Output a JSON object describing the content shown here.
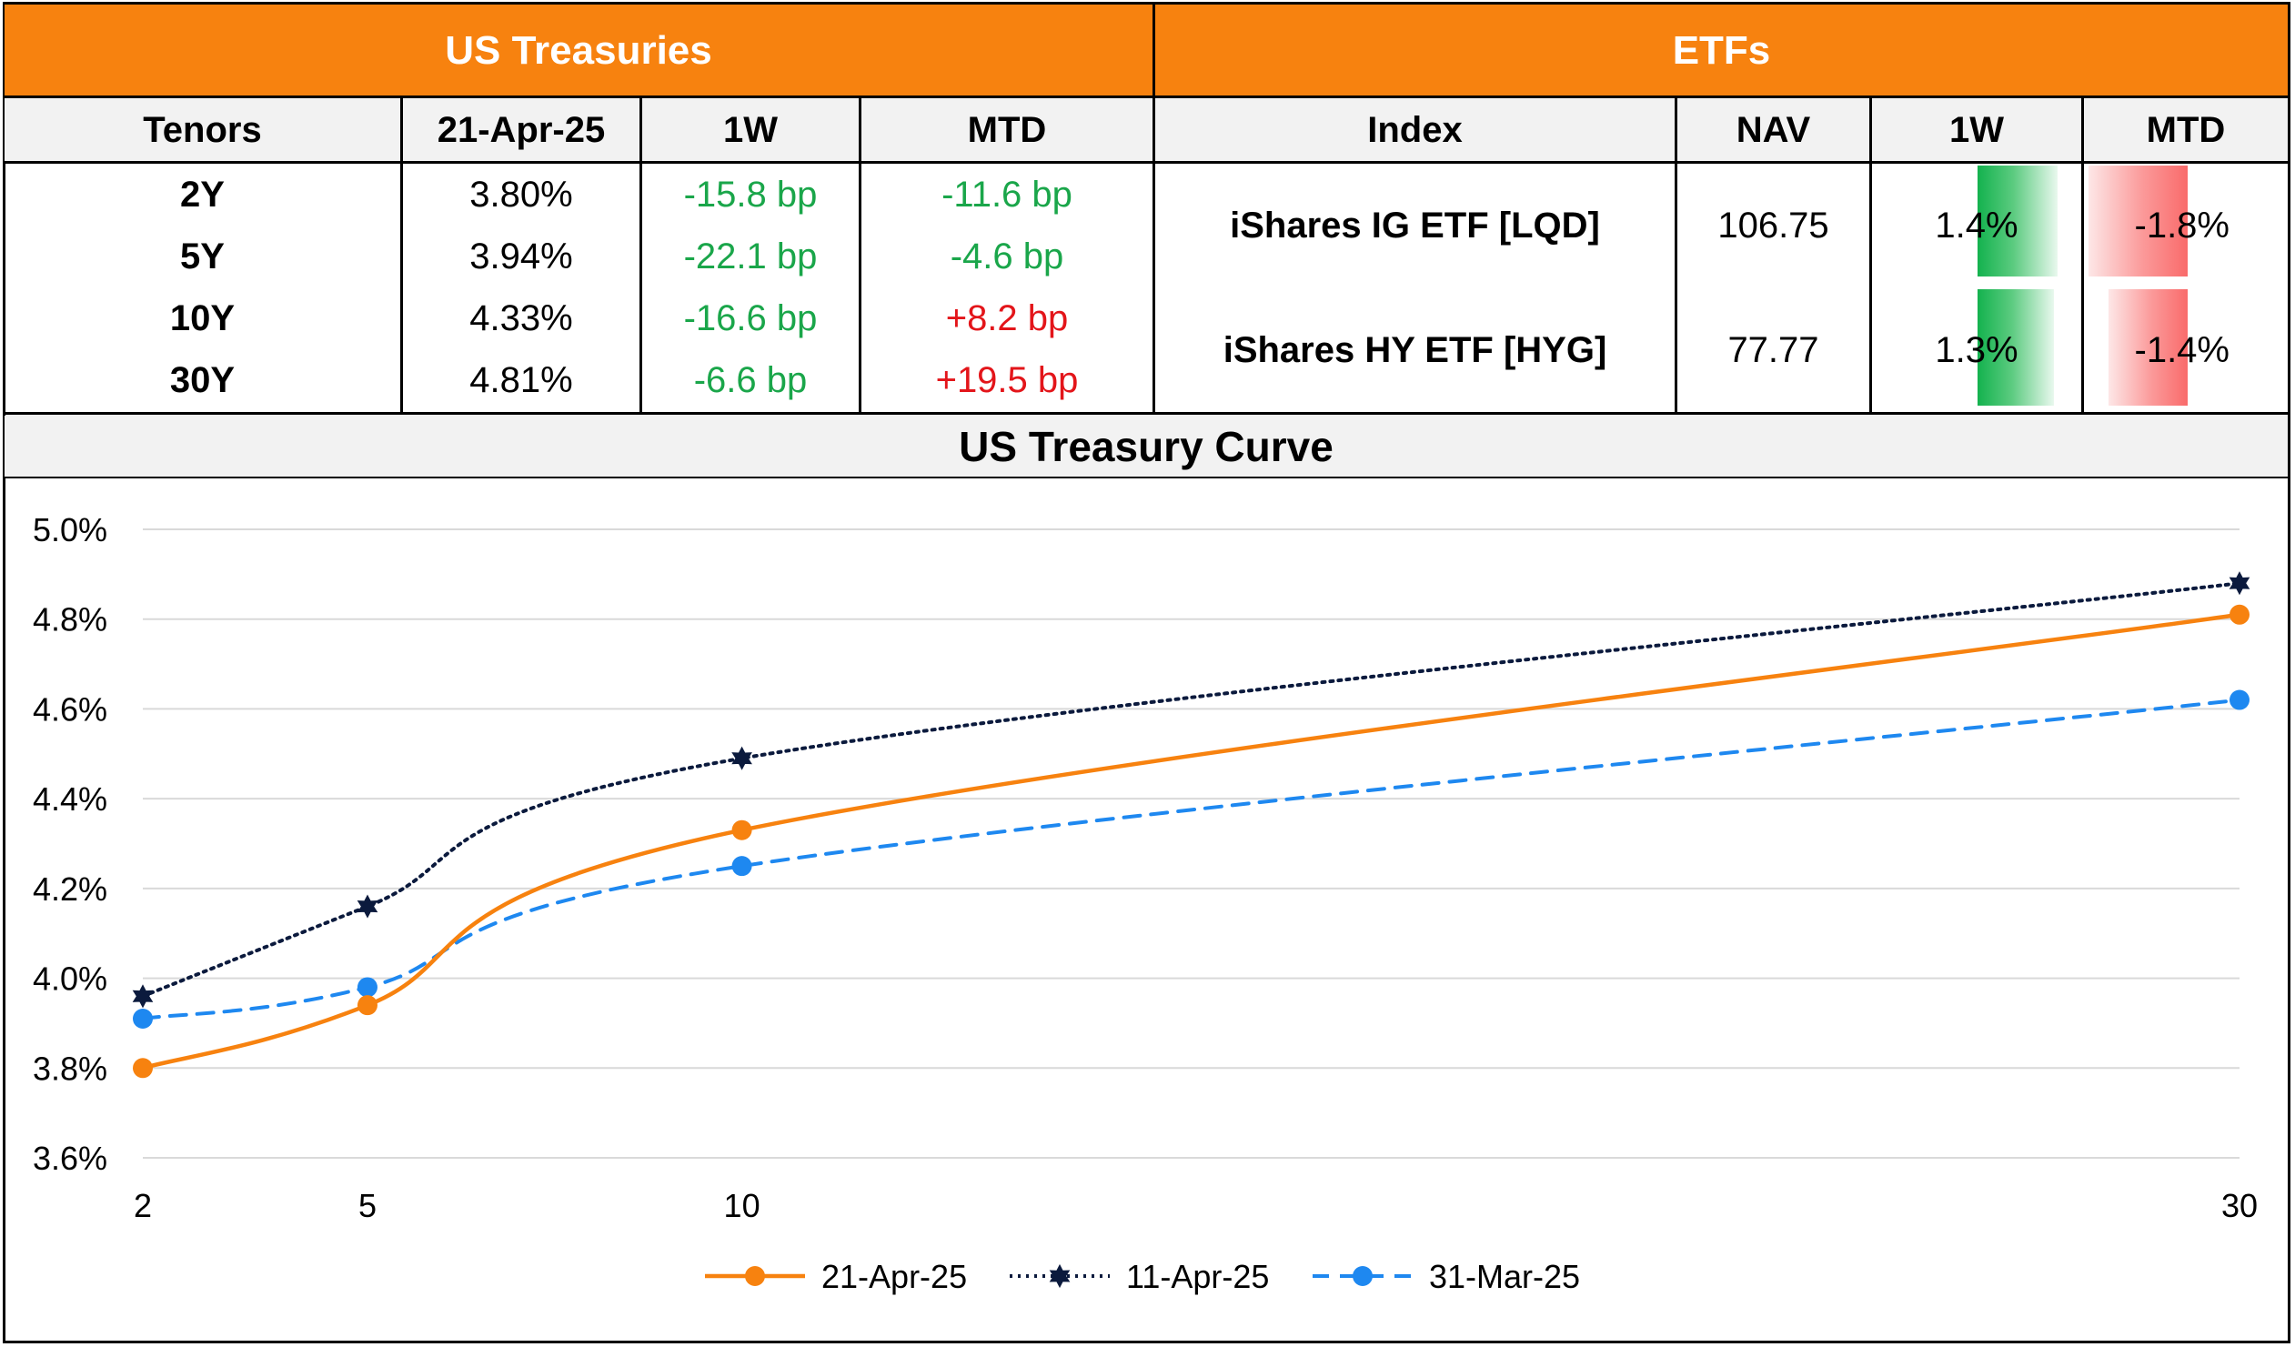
{
  "treasuries": {
    "title": "US Treasuries",
    "headers": [
      "Tenors",
      "21-Apr-25",
      "1W",
      "MTD"
    ],
    "rows": [
      {
        "tenor": "2Y",
        "yield": "3.80%",
        "w1": "-15.8 bp",
        "mtd": "-11.6 bp",
        "w1_dir": "down",
        "mtd_dir": "down"
      },
      {
        "tenor": "5Y",
        "yield": "3.94%",
        "w1": "-22.1 bp",
        "mtd": "-4.6 bp",
        "w1_dir": "down",
        "mtd_dir": "down"
      },
      {
        "tenor": "10Y",
        "yield": "4.33%",
        "w1": "-16.6 bp",
        "mtd": "+8.2 bp",
        "w1_dir": "down",
        "mtd_dir": "up"
      },
      {
        "tenor": "30Y",
        "yield": "4.81%",
        "w1": "-6.6 bp",
        "mtd": "+19.5 bp",
        "w1_dir": "down",
        "mtd_dir": "up"
      }
    ]
  },
  "etfs": {
    "title": "ETFs",
    "headers": [
      "Index",
      "NAV",
      "1W",
      "MTD"
    ],
    "rows": [
      {
        "index": "iShares IG ETF [LQD]",
        "nav": "106.75",
        "w1": "1.4%",
        "mtd": "-1.8%",
        "w1_value": 1.4,
        "mtd_value": -1.8
      },
      {
        "index": "iShares HY ETF [HYG]",
        "nav": "77.77",
        "w1": "1.3%",
        "mtd": "-1.4%",
        "w1_value": 1.3,
        "mtd_value": -1.4
      }
    ]
  },
  "colors": {
    "header_orange": "#F7820F",
    "positive_green": "#1AA64A",
    "negative_red": "#E3151A",
    "series_21apr": "#F7820F",
    "series_11apr": "#0B1A3D",
    "series_31mar": "#1E88F0"
  },
  "chart_title": "US Treasury Curve",
  "chart_data": {
    "type": "line",
    "title": "US Treasury Curve",
    "x": [
      2,
      5,
      10,
      30
    ],
    "xticks": [
      "2",
      "5",
      "10",
      "30"
    ],
    "ylim": [
      3.6,
      5.0
    ],
    "yticks": [
      "3.6%",
      "3.8%",
      "4.0%",
      "4.2%",
      "4.4%",
      "4.6%",
      "4.8%",
      "5.0%"
    ],
    "ytick_values": [
      3.6,
      3.8,
      4.0,
      4.2,
      4.4,
      4.6,
      4.8,
      5.0
    ],
    "grid": true,
    "legend": "bottom",
    "series": [
      {
        "name": "21-Apr-25",
        "values": [
          3.8,
          3.94,
          4.33,
          4.81
        ],
        "style": "solid",
        "marker": "circle"
      },
      {
        "name": "11-Apr-25",
        "values": [
          3.96,
          4.16,
          4.49,
          4.88
        ],
        "style": "dotted",
        "marker": "star"
      },
      {
        "name": "31-Mar-25",
        "values": [
          3.91,
          3.98,
          4.25,
          4.62
        ],
        "style": "dashed",
        "marker": "circle"
      }
    ]
  }
}
